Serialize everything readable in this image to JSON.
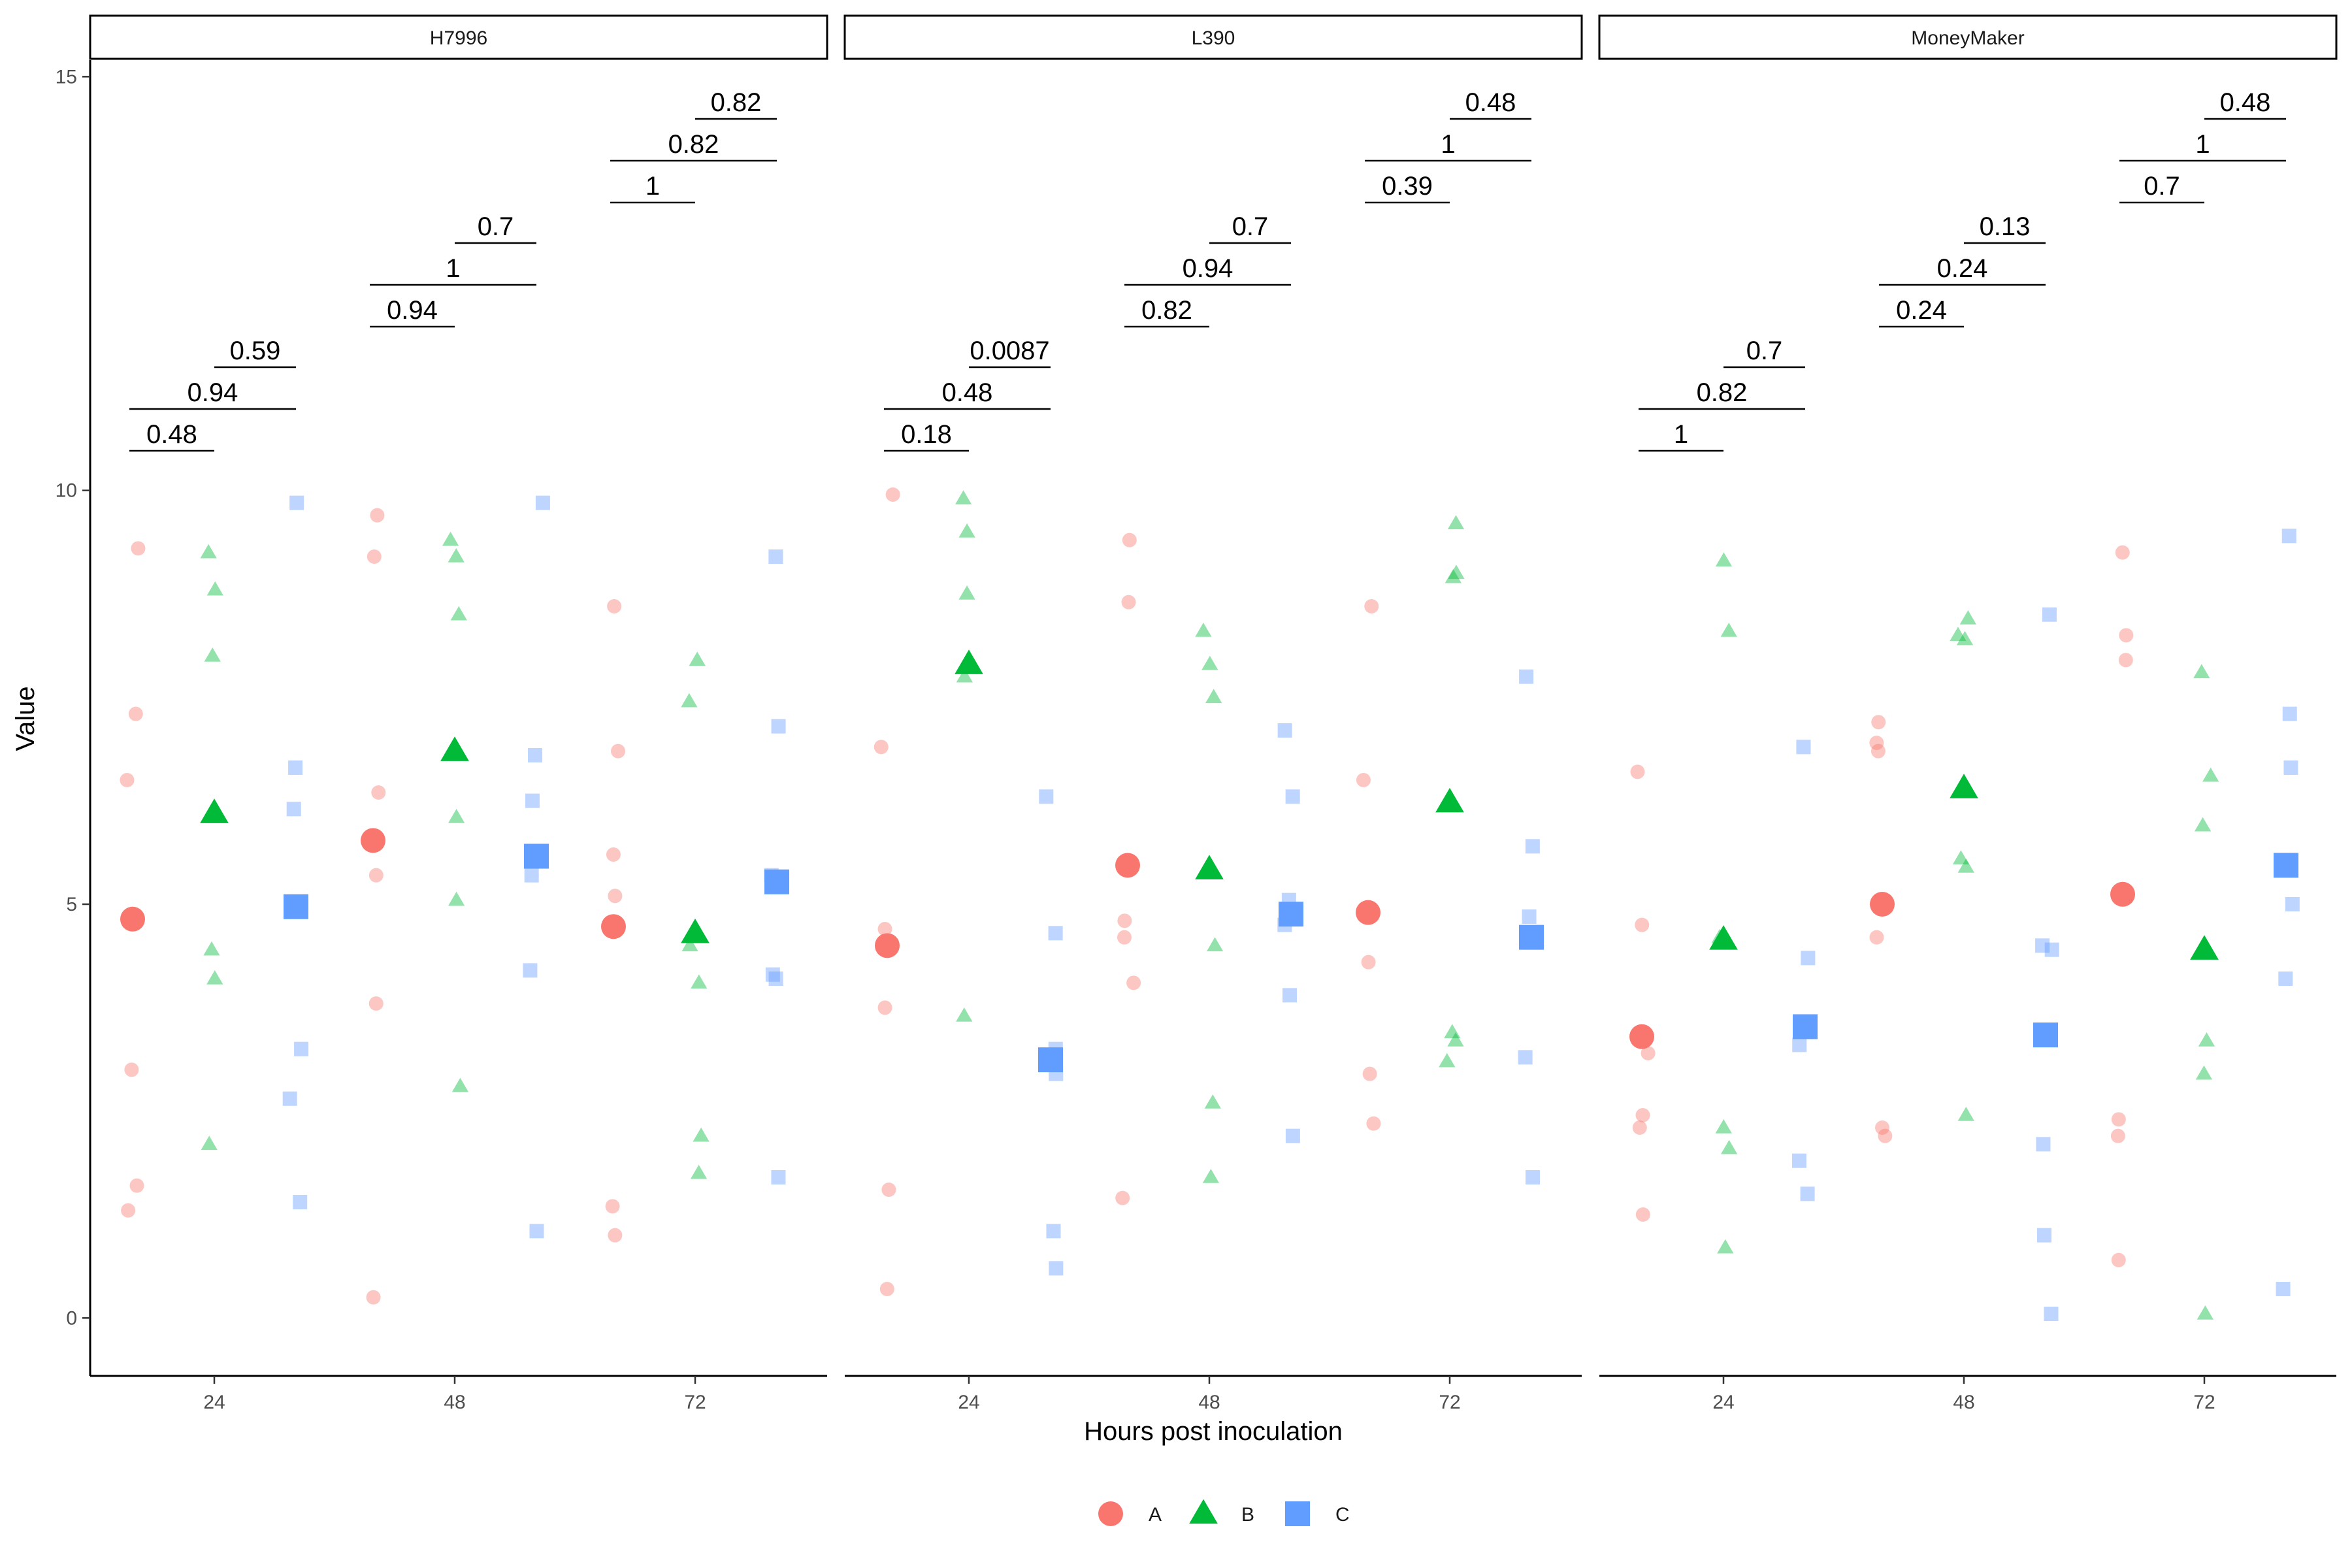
{
  "chart_data": {
    "type": "scatter",
    "title": "",
    "xlabel": "Hours post inoculation",
    "ylabel": "Value",
    "ylim": [
      -0.7,
      15.2
    ],
    "y_ticks": [
      0,
      5,
      10,
      15
    ],
    "x_ticks": [
      24,
      48,
      72
    ],
    "grid": false,
    "legend_position": "bottom",
    "groups": [
      {
        "name": "A",
        "color": "#F8766D",
        "shape": "circle"
      },
      {
        "name": "B",
        "color": "#00BA38",
        "shape": "triangle"
      },
      {
        "name": "C",
        "color": "#619CFF",
        "shape": "square"
      }
    ],
    "panels": [
      {
        "name": "H7996",
        "timepoints": [
          {
            "hour": 24,
            "A": {
              "mean": 4.82,
              "values": [
                9.3,
                7.3,
                6.5,
                3.0,
                1.6,
                1.3
              ]
            },
            "B": {
              "mean": 6.1,
              "values": [
                9.25,
                8.8,
                8.0,
                4.45,
                4.1,
                2.1
              ]
            },
            "C": {
              "mean": 4.97,
              "values": [
                9.85,
                6.65,
                6.15,
                3.25,
                2.65,
                1.4
              ]
            },
            "pvalues": {
              "A-B": "0.48",
              "A-C": "0.94",
              "B-C": "0.59"
            }
          },
          {
            "hour": 48,
            "A": {
              "mean": 5.77,
              "values": [
                9.7,
                9.2,
                6.35,
                5.35,
                3.8,
                0.25
              ]
            },
            "B": {
              "mean": 6.85,
              "values": [
                9.4,
                9.2,
                8.5,
                6.05,
                5.05,
                2.8
              ]
            },
            "C": {
              "mean": 5.58,
              "values": [
                9.85,
                6.8,
                6.25,
                5.35,
                4.2,
                1.05
              ]
            },
            "pvalues": {
              "A-B": "0.94",
              "A-C": "1",
              "B-C": "0.7"
            }
          },
          {
            "hour": 72,
            "A": {
              "mean": 4.73,
              "values": [
                8.6,
                6.85,
                5.6,
                5.1,
                1.35,
                1.0
              ]
            },
            "B": {
              "mean": 4.65,
              "values": [
                7.95,
                7.45,
                4.5,
                4.05,
                2.2,
                1.75
              ]
            },
            "C": {
              "mean": 5.27,
              "values": [
                9.2,
                7.15,
                5.35,
                4.15,
                4.1,
                1.7
              ]
            },
            "pvalues": {
              "A-B": "1",
              "A-C": "0.82",
              "B-C": "0.82"
            }
          }
        ]
      },
      {
        "name": "L390",
        "timepoints": [
          {
            "hour": 24,
            "A": {
              "mean": 4.5,
              "values": [
                9.95,
                6.9,
                4.7,
                3.75,
                1.55,
                0.35
              ]
            },
            "B": {
              "mean": 7.9,
              "values": [
                9.9,
                9.5,
                8.75,
                7.75,
                3.65
              ]
            },
            "C": {
              "mean": 3.12,
              "values": [
                6.3,
                4.65,
                3.25,
                2.95,
                1.05,
                0.6
              ]
            },
            "pvalues": {
              "A-B": "0.18",
              "A-C": "0.48",
              "B-C": "0.0087"
            }
          },
          {
            "hour": 48,
            "A": {
              "mean": 5.47,
              "values": [
                9.4,
                8.65,
                4.8,
                4.6,
                4.05,
                1.45
              ]
            },
            "B": {
              "mean": 5.42,
              "values": [
                8.3,
                7.9,
                7.5,
                4.5,
                2.6,
                1.7
              ]
            },
            "C": {
              "mean": 4.88,
              "values": [
                7.1,
                6.3,
                5.05,
                4.75,
                3.9,
                2.2
              ]
            },
            "pvalues": {
              "A-B": "0.82",
              "A-C": "0.94",
              "B-C": "0.7"
            }
          },
          {
            "hour": 72,
            "A": {
              "mean": 4.9,
              "values": [
                8.6,
                6.5,
                4.3,
                2.95,
                2.35
              ]
            },
            "B": {
              "mean": 6.23,
              "values": [
                9.6,
                9.0,
                8.95,
                3.45,
                3.35,
                3.1
              ]
            },
            "C": {
              "mean": 4.6,
              "values": [
                7.75,
                5.7,
                4.85,
                3.15,
                1.7
              ]
            },
            "pvalues": {
              "A-B": "0.39",
              "A-C": "1",
              "B-C": "0.48"
            }
          }
        ]
      },
      {
        "name": "MoneyMaker",
        "timepoints": [
          {
            "hour": 24,
            "A": {
              "mean": 3.4,
              "values": [
                6.6,
                4.75,
                3.2,
                2.45,
                2.3,
                1.25
              ]
            },
            "B": {
              "mean": 4.57,
              "values": [
                9.15,
                8.3,
                4.6,
                2.3,
                2.05,
                0.85
              ]
            },
            "C": {
              "mean": 3.52,
              "values": [
                6.9,
                4.35,
                3.3,
                1.9,
                1.5
              ]
            },
            "pvalues": {
              "A-B": "1",
              "A-C": "0.82",
              "B-C": "0.7"
            }
          },
          {
            "hour": 48,
            "A": {
              "mean": 5.0,
              "values": [
                7.2,
                6.95,
                6.85,
                4.6,
                2.3,
                2.2
              ]
            },
            "B": {
              "mean": 6.4,
              "values": [
                8.45,
                8.25,
                8.2,
                5.55,
                5.45,
                2.45
              ]
            },
            "C": {
              "mean": 3.42,
              "values": [
                8.5,
                4.5,
                4.45,
                2.1,
                1.0,
                0.05
              ]
            },
            "pvalues": {
              "A-B": "0.24",
              "A-C": "0.24",
              "B-C": "0.13"
            }
          },
          {
            "hour": 72,
            "A": {
              "mean": 5.12,
              "values": [
                9.25,
                8.25,
                7.95,
                2.4,
                2.2,
                0.7
              ]
            },
            "B": {
              "mean": 4.45,
              "values": [
                7.8,
                6.55,
                5.95,
                3.35,
                2.95,
                0.05
              ]
            },
            "C": {
              "mean": 5.47,
              "values": [
                9.45,
                7.3,
                6.65,
                5.0,
                4.1,
                0.35
              ]
            },
            "pvalues": {
              "A-B": "0.7",
              "A-C": "1",
              "B-C": "0.48"
            }
          }
        ]
      }
    ]
  }
}
